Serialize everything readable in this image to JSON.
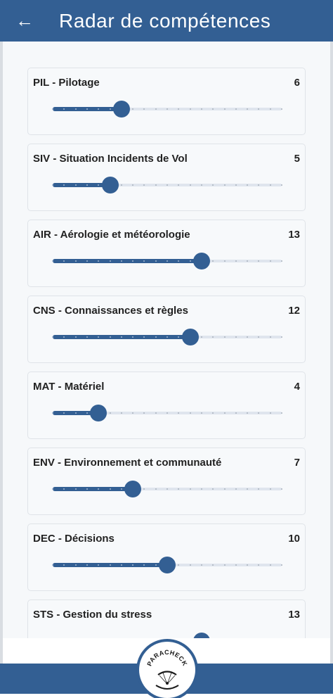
{
  "header": {
    "title": "Radar de compétences",
    "back_icon": "←"
  },
  "slider": {
    "min": 0,
    "max": 20
  },
  "skills": [
    {
      "label": "PIL - Pilotage",
      "value": 6
    },
    {
      "label": "SIV - Situation Incidents de Vol",
      "value": 5
    },
    {
      "label": "AIR - Aérologie et météorologie",
      "value": 13
    },
    {
      "label": "CNS - Connaissances et règles",
      "value": 12
    },
    {
      "label": "MAT - Matériel",
      "value": 4
    },
    {
      "label": "ENV - Environnement et communauté",
      "value": 7
    },
    {
      "label": "DEC - Décisions",
      "value": 10
    },
    {
      "label": "STS - Gestion du stress",
      "value": 13
    }
  ],
  "logo": {
    "text": "PARACHECK"
  },
  "colors": {
    "primary": "#335f93",
    "background": "#f6f8fa",
    "track": "#dfe5ee"
  }
}
